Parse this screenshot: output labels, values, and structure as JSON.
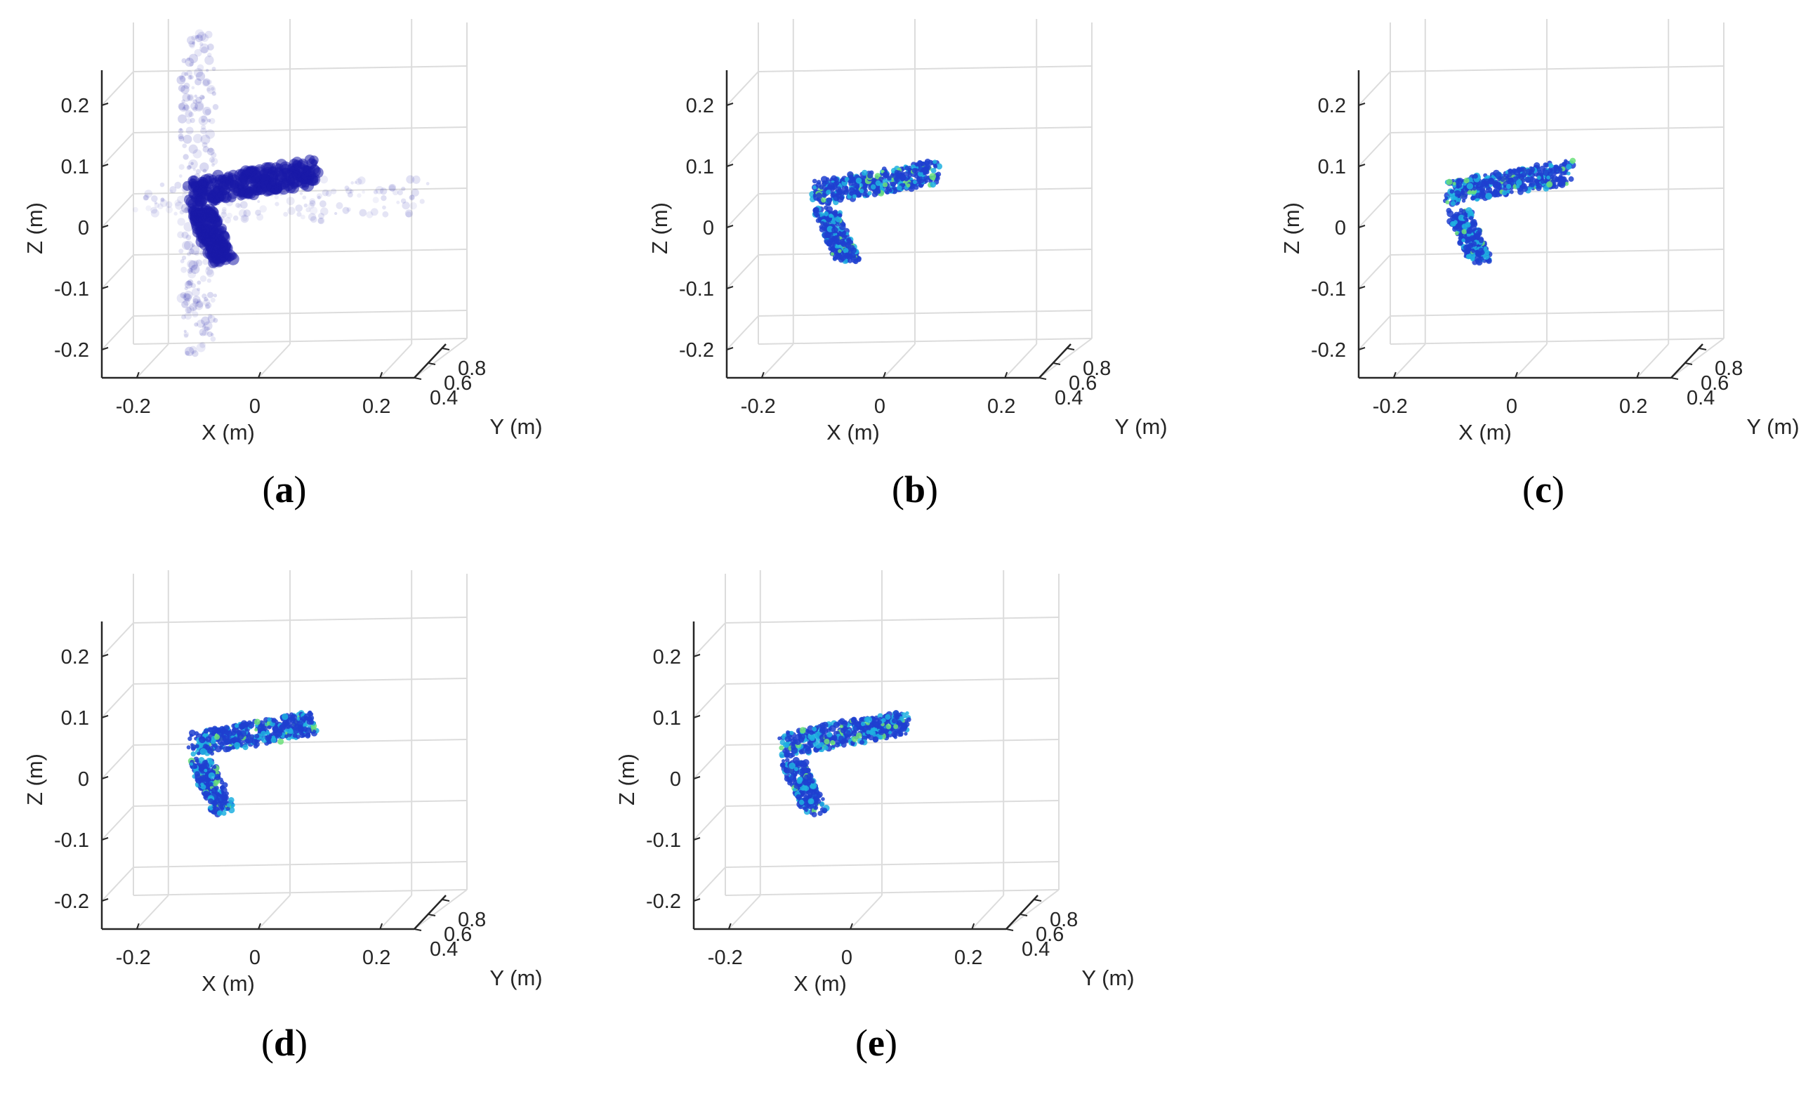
{
  "chart_data": [
    {
      "type": "scatter",
      "panel_label": "a",
      "xlabel": "X (m)",
      "ylabel": "Y (m)",
      "zlabel": "Z (m)",
      "x_ticks": [
        "-0.2",
        "0",
        "0.2"
      ],
      "y_ticks": [
        "0.4",
        "0.6",
        "0.8"
      ],
      "z_ticks": [
        "0.2",
        "0.1",
        "0",
        "-0.1",
        "-0.2"
      ],
      "xlim": [
        -0.25,
        0.25
      ],
      "ylim": [
        0.4,
        0.8
      ],
      "zlim": [
        -0.25,
        0.25
      ],
      "grid": true,
      "rendering": "dark blue point cloud of a handgun with sidelobe artifacts"
    },
    {
      "type": "scatter",
      "panel_label": "b",
      "xlabel": "X (m)",
      "ylabel": "Y (m)",
      "zlabel": "Z (m)",
      "x_ticks": [
        "-0.2",
        "0",
        "0.2"
      ],
      "y_ticks": [
        "0.4",
        "0.6",
        "0.8"
      ],
      "z_ticks": [
        "0.2",
        "0.1",
        "0",
        "-0.1",
        "-0.2"
      ],
      "xlim": [
        -0.25,
        0.25
      ],
      "ylim": [
        0.4,
        0.8
      ],
      "zlim": [
        -0.25,
        0.25
      ],
      "grid": true,
      "rendering": "blue-green colormap point cloud of a handgun"
    },
    {
      "type": "scatter",
      "panel_label": "c",
      "xlabel": "X (m)",
      "ylabel": "Y (m)",
      "zlabel": "Z (m)",
      "x_ticks": [
        "-0.2",
        "0",
        "0.2"
      ],
      "y_ticks": [
        "0.4",
        "0.6",
        "0.8"
      ],
      "z_ticks": [
        "0.2",
        "0.1",
        "0",
        "-0.1",
        "-0.2"
      ],
      "xlim": [
        -0.25,
        0.25
      ],
      "ylim": [
        0.4,
        0.8
      ],
      "zlim": [
        -0.25,
        0.25
      ],
      "grid": true,
      "rendering": "blue-green colormap point cloud of a handgun"
    },
    {
      "type": "scatter",
      "panel_label": "d",
      "xlabel": "X (m)",
      "ylabel": "Y (m)",
      "zlabel": "Z (m)",
      "x_ticks": [
        "-0.2",
        "0",
        "0.2"
      ],
      "y_ticks": [
        "0.4",
        "0.6",
        "0.8"
      ],
      "z_ticks": [
        "0.2",
        "0.1",
        "0",
        "-0.1",
        "-0.2"
      ],
      "xlim": [
        -0.25,
        0.25
      ],
      "ylim": [
        0.4,
        0.8
      ],
      "zlim": [
        -0.25,
        0.25
      ],
      "grid": true,
      "rendering": "blue-green colormap point cloud of a handgun"
    },
    {
      "type": "scatter",
      "panel_label": "e",
      "xlabel": "X (m)",
      "ylabel": "Y (m)",
      "zlabel": "Z (m)",
      "x_ticks": [
        "-0.2",
        "0",
        "0.2"
      ],
      "y_ticks": [
        "0.4",
        "0.6",
        "0.8"
      ],
      "z_ticks": [
        "0.2",
        "0.1",
        "0",
        "-0.1",
        "-0.2"
      ],
      "xlim": [
        -0.25,
        0.25
      ],
      "ylim": [
        0.4,
        0.8
      ],
      "zlim": [
        -0.25,
        0.25
      ],
      "grid": true,
      "rendering": "blue-green colormap point cloud of a handgun"
    }
  ],
  "captions": [
    "a",
    "b",
    "c",
    "d",
    "e"
  ],
  "colors": {
    "grid": "#dcdcdc",
    "axis": "#262626",
    "raw_cloud": "#1a1aa8",
    "colormap_low": "#1f3fd0",
    "colormap_mid": "#1fb0e0",
    "colormap_high": "#6be07a"
  }
}
